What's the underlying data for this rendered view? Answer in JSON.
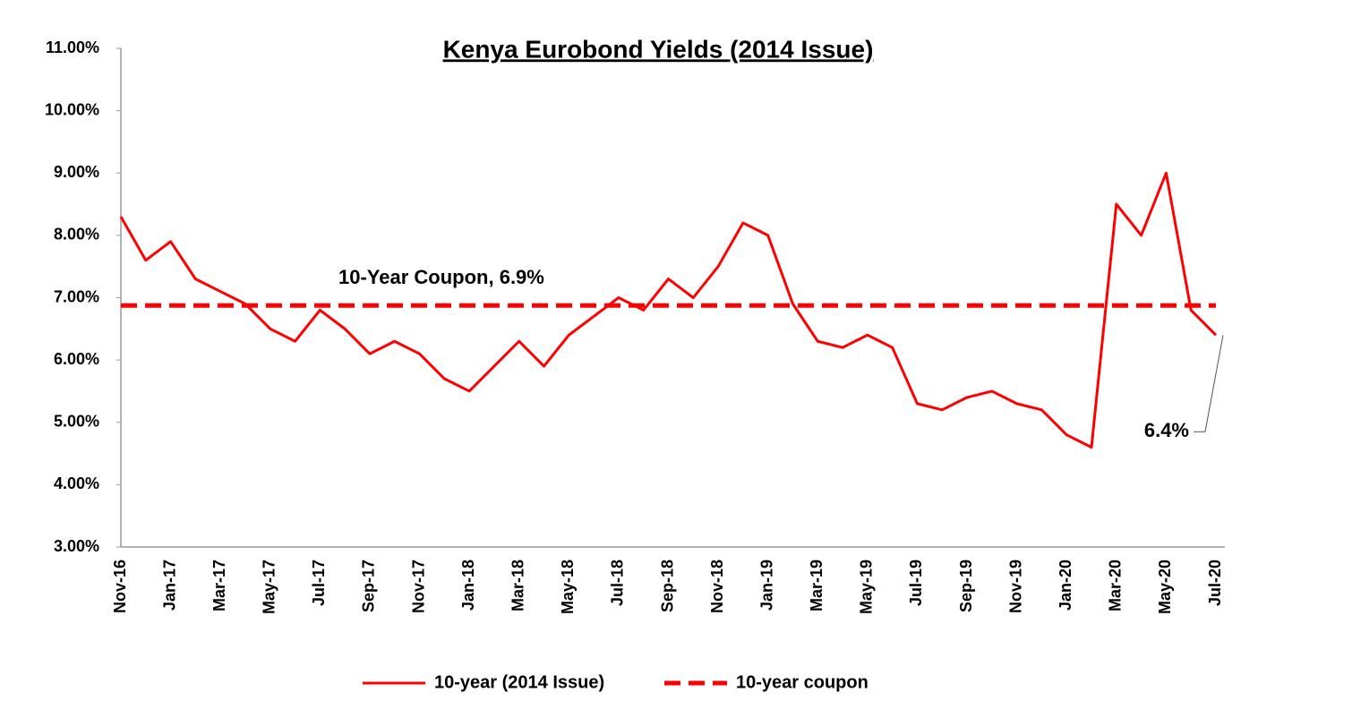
{
  "chart_data": {
    "type": "line",
    "title": "Kenya Eurobond Yields (2014 Issue)",
    "x": [
      "Nov-16",
      "Dec-16",
      "Jan-17",
      "Feb-17",
      "Mar-17",
      "Apr-17",
      "May-17",
      "Jun-17",
      "Jul-17",
      "Aug-17",
      "Sep-17",
      "Oct-17",
      "Nov-17",
      "Dec-17",
      "Jan-18",
      "Feb-18",
      "Mar-18",
      "Apr-18",
      "May-18",
      "Jun-18",
      "Jul-18",
      "Aug-18",
      "Sep-18",
      "Oct-18",
      "Nov-18",
      "Dec-18",
      "Jan-19",
      "Feb-19",
      "Mar-19",
      "Apr-19",
      "May-19",
      "Jun-19",
      "Jul-19",
      "Aug-19",
      "Sep-19",
      "Oct-19",
      "Nov-19",
      "Dec-19",
      "Jan-20",
      "Feb-20",
      "Mar-20",
      "Apr-20",
      "May-20",
      "Jun-20",
      "Jul-20"
    ],
    "xticks": [
      "Nov-16",
      "Jan-17",
      "Mar-17",
      "May-17",
      "Jul-17",
      "Sep-17",
      "Nov-17",
      "Jan-18",
      "Mar-18",
      "May-18",
      "Jul-18",
      "Sep-18",
      "Nov-18",
      "Jan-19",
      "Mar-19",
      "May-19",
      "Jul-19",
      "Sep-19",
      "Nov-19",
      "Jan-20",
      "Mar-20",
      "May-20",
      "Jul-20"
    ],
    "series": [
      {
        "name": "10-year (2014 Issue)",
        "color": "#ff0000",
        "dash": false,
        "values": [
          8.3,
          7.6,
          7.9,
          7.3,
          7.1,
          6.9,
          6.5,
          6.3,
          6.8,
          6.5,
          6.1,
          6.3,
          6.1,
          5.7,
          5.5,
          5.9,
          6.3,
          5.9,
          6.4,
          6.7,
          7.0,
          6.8,
          7.3,
          7.0,
          7.5,
          8.2,
          8.0,
          6.9,
          6.3,
          6.2,
          6.4,
          6.2,
          5.3,
          5.2,
          5.4,
          5.5,
          5.3,
          5.2,
          4.8,
          4.6,
          8.5,
          8.0,
          9.0,
          6.8,
          6.4
        ],
        "value_labels": [
          null,
          null,
          null,
          null,
          null,
          null,
          null,
          null,
          null,
          null,
          null,
          null,
          null,
          null,
          null,
          null,
          null,
          null,
          null,
          null,
          null,
          null,
          null,
          null,
          null,
          null,
          null,
          null,
          null,
          null,
          null,
          null,
          null,
          null,
          null,
          null,
          null,
          null,
          null,
          null,
          null,
          null,
          null,
          null,
          "6.4%"
        ]
      },
      {
        "name": "10-year coupon",
        "color": "#ff0000",
        "dash": true,
        "values": [
          6.875,
          6.875,
          6.875,
          6.875,
          6.875,
          6.875,
          6.875,
          6.875,
          6.875,
          6.875,
          6.875,
          6.875,
          6.875,
          6.875,
          6.875,
          6.875,
          6.875,
          6.875,
          6.875,
          6.875,
          6.875,
          6.875,
          6.875,
          6.875,
          6.875,
          6.875,
          6.875,
          6.875,
          6.875,
          6.875,
          6.875,
          6.875,
          6.875,
          6.875,
          6.875,
          6.875,
          6.875,
          6.875,
          6.875,
          6.875,
          6.875,
          6.875,
          6.875,
          6.875,
          6.875
        ]
      }
    ],
    "annotation": "10-Year Coupon, 6.9%",
    "ylim": [
      3,
      11
    ],
    "yticks": [
      {
        "value": 3,
        "label": "3.00%"
      },
      {
        "value": 4,
        "label": "4.00%"
      },
      {
        "value": 5,
        "label": "5.00%"
      },
      {
        "value": 6,
        "label": "6.00%"
      },
      {
        "value": 7,
        "label": "7.00%"
      },
      {
        "value": 8,
        "label": "8.00%"
      },
      {
        "value": 9,
        "label": "9.00%"
      },
      {
        "value": 10,
        "label": "10.00%"
      },
      {
        "value": 11,
        "label": "11.00%"
      }
    ],
    "grid": false
  }
}
